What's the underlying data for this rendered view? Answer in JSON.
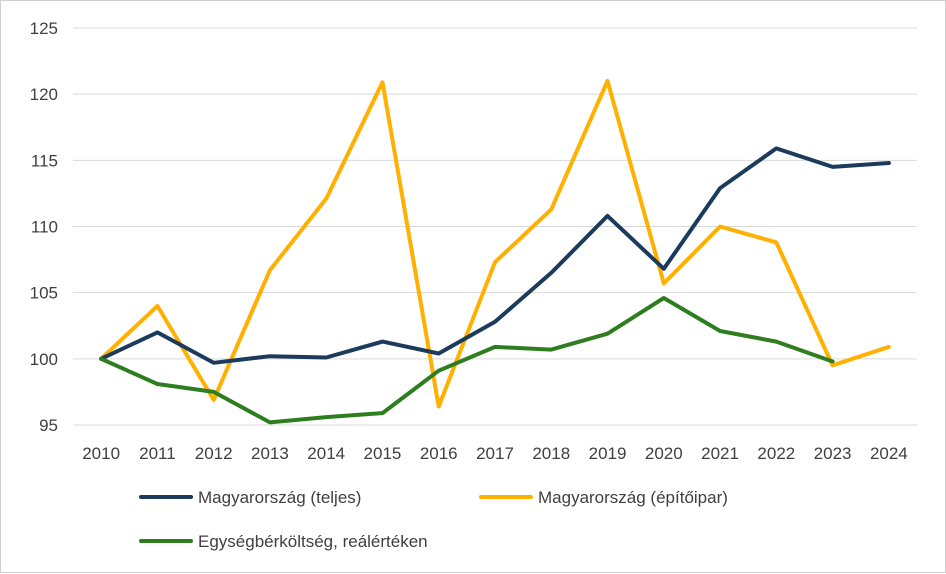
{
  "chart_data": {
    "type": "line",
    "title": "",
    "xlabel": "",
    "ylabel": "",
    "ylim": [
      95,
      125
    ],
    "yticks": [
      95,
      100,
      105,
      110,
      115,
      120,
      125
    ],
    "grid": "horizontal",
    "legend_position": "bottom",
    "categories": [
      "2010",
      "2011",
      "2012",
      "2013",
      "2014",
      "2015",
      "2016",
      "2017",
      "2018",
      "2019",
      "2020",
      "2021",
      "2022",
      "2023",
      "2024"
    ],
    "series": [
      {
        "name": "Magyarország (teljes)",
        "color": "#1b3a5c",
        "values": [
          100,
          102.0,
          99.7,
          100.2,
          100.1,
          101.3,
          100.4,
          102.8,
          106.5,
          110.8,
          106.8,
          112.9,
          115.9,
          114.5,
          114.8
        ]
      },
      {
        "name": "Magyarország (építőipar)",
        "color": "#ffb000",
        "values": [
          100,
          104.0,
          96.9,
          106.7,
          112.1,
          120.9,
          96.4,
          107.3,
          111.3,
          121.0,
          105.7,
          110.0,
          108.8,
          99.5,
          100.9
        ]
      },
      {
        "name": "Egységbérköltség, reálértéken",
        "color": "#2e7d1f",
        "values": [
          100,
          98.1,
          97.5,
          95.2,
          95.6,
          95.9,
          99.1,
          100.9,
          100.7,
          101.9,
          104.6,
          102.1,
          101.3,
          99.8,
          null
        ]
      }
    ]
  }
}
